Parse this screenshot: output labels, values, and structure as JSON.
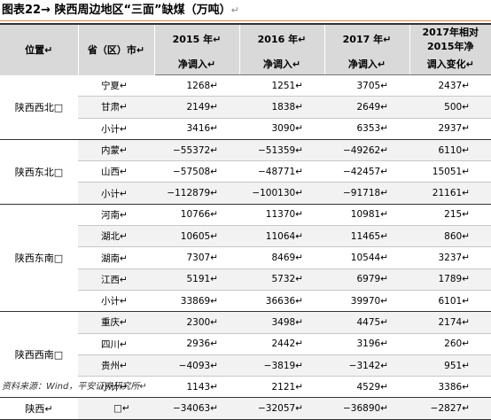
{
  "title": "图表22→ 陕西周边地区“三面”缺煤（万吨）",
  "title_mark": "↵",
  "header": {
    "row1": [
      "位置↵",
      "省（区）市↵",
      "2015 年↵",
      "2016 年↵",
      "2017 年↵",
      "2017年相对 2015年净"
    ],
    "row2": [
      "净调入↵",
      "净调入↵",
      "净调入↵",
      "调入变化↵"
    ]
  },
  "rows": [
    {
      "region": "陕西西北□",
      "province": "宁夏↵",
      "y2015": "1268↵",
      "y2016": "1251↵",
      "y2017": "3705↵",
      "change": "2437↵"
    },
    {
      "province": "甘肃↵",
      "y2015": "2149↵",
      "y2016": "1838↵",
      "y2017": "2649↵",
      "change": "500↵"
    },
    {
      "province": "小计↵",
      "y2015": "3416↵",
      "y2016": "3090↵",
      "y2017": "6353↵",
      "change": "2937↵"
    },
    {
      "region": "陕西东北□",
      "province": "内蒙↵",
      "y2015": "−55372↵",
      "y2016": "−51359↵",
      "y2017": "−49262↵",
      "change": "6110↵"
    },
    {
      "province": "山西↵",
      "y2015": "−57508↵",
      "y2016": "−48771↵",
      "y2017": "−42457↵",
      "change": "15051↵"
    },
    {
      "province": "小计↵",
      "y2015": "−112879↵",
      "y2016": "−100130↵",
      "y2017": "−91718↵",
      "change": "21161↵"
    },
    {
      "region": "陕西东南□",
      "province": "河南↵",
      "y2015": "10766↵",
      "y2016": "11370↵",
      "y2017": "10981↵",
      "change": "215↵"
    },
    {
      "province": "湖北↵",
      "y2015": "10605↵",
      "y2016": "11064↵",
      "y2017": "11465↵",
      "change": "860↵"
    },
    {
      "province": "湖南↵",
      "y2015": "7307↵",
      "y2016": "8469↵",
      "y2017": "10544↵",
      "change": "3237↵"
    },
    {
      "province": "江西↵",
      "y2015": "5191↵",
      "y2016": "5732↵",
      "y2017": "6979↵",
      "change": "1789↵"
    },
    {
      "province": "小计↵",
      "y2015": "33869↵",
      "y2016": "36636↵",
      "y2017": "39970↵",
      "change": "6101↵"
    },
    {
      "region": "陕西西南□",
      "province": "重庆↵",
      "y2015": "2300↵",
      "y2016": "3498↵",
      "y2017": "4475↵",
      "change": "2174↵"
    },
    {
      "province": "四川↵",
      "y2015": "2936↵",
      "y2016": "2442↵",
      "y2017": "3196↵",
      "change": "260↵"
    },
    {
      "province": "贵州↵",
      "y2015": "−4093↵",
      "y2016": "−3819↵",
      "y2017": "−3142↵",
      "change": "951↵"
    },
    {
      "province": "小计↵",
      "y2015": "1143↵",
      "y2016": "2121↵",
      "y2017": "4529↵",
      "change": "3386↵"
    },
    {
      "region": "陕西↵",
      "province": "□↵",
      "y2015": "−34063↵",
      "y2016": "−32057↵",
      "y2017": "−36890↵",
      "change": "−2827↵"
    }
  ],
  "source": "资料来源：Wind，平安证券研究所↵"
}
